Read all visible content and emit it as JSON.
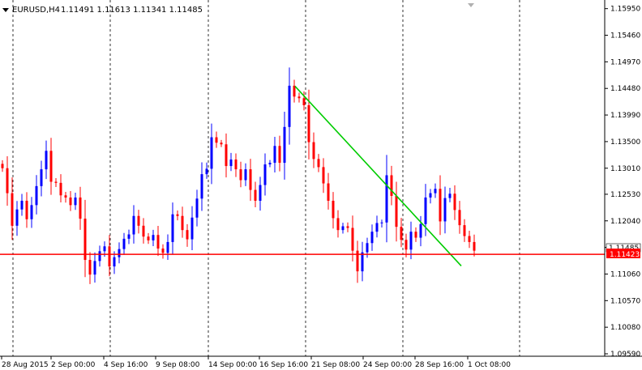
{
  "symbol_title": "EURUSD,H4",
  "ohlc_readout": "1.11491 1.11613 1.11341 1.11485",
  "colors": {
    "background": "#ffffff",
    "bull_candle": "#0000ff",
    "bear_candle": "#ff0000",
    "trendline": "#00cc00",
    "hline": "#ff0000",
    "price_badge": "#ff0000",
    "grid": "#000000",
    "axis": "#000000"
  },
  "icons": {
    "triangle": "triangle-down-icon"
  },
  "chart_data": {
    "type": "candlestick",
    "title": "EURUSD,H4",
    "ylim": [
      1.0959,
      1.1599
    ],
    "y_ticks": [
      "1.15950",
      "1.15460",
      "1.14970",
      "1.14480",
      "1.13990",
      "1.13500",
      "1.13010",
      "1.12530",
      "1.12040",
      "1.11550",
      "1.11060",
      "1.10570",
      "1.10080",
      "1.09590"
    ],
    "x_labels": [
      "28 Aug 2015",
      "2 Sep 00:00",
      "4 Sep 16:00",
      "9 Sep 08:00",
      "14 Sep 00:00",
      "16 Sep 16:00",
      "21 Sep 08:00",
      "24 Sep 00:00",
      "28 Sep 16:00",
      "1 Oct 08:00"
    ],
    "current_price": "1.11485",
    "hline_price": "1.11423",
    "trendline": {
      "start_price": 1.1452,
      "end_price": 1.1121
    },
    "grid": "vertical dashed",
    "closes": [
      1.1301,
      1.1255,
      1.1195,
      1.1225,
      1.1241,
      1.1207,
      1.1233,
      1.1268,
      1.1299,
      1.1333,
      1.1276,
      1.1274,
      1.1251,
      1.1247,
      1.1233,
      1.1247,
      1.1208,
      1.1132,
      1.1105,
      1.113,
      1.1148,
      1.1157,
      1.112,
      1.1137,
      1.1152,
      1.1171,
      1.1179,
      1.1213,
      1.1195,
      1.1175,
      1.1168,
      1.1178,
      1.1153,
      1.1145,
      1.1165,
      1.1216,
      1.1213,
      1.1187,
      1.117,
      1.121,
      1.1245,
      1.129,
      1.13,
      1.1358,
      1.1348,
      1.1345,
      1.1305,
      1.1317,
      1.1299,
      1.1279,
      1.1299,
      1.1261,
      1.1241,
      1.127,
      1.1308,
      1.1311,
      1.1342,
      1.1311,
      1.1377,
      1.1453,
      1.1433,
      1.143,
      1.1417,
      1.1349,
      1.1318,
      1.1303,
      1.1273,
      1.1241,
      1.1209,
      1.1187,
      1.1194,
      1.1191,
      1.1149,
      1.1111,
      1.1146,
      1.1163,
      1.1184,
      1.12,
      1.1201,
      1.1288,
      1.125,
      1.1193,
      1.1169,
      1.1151,
      1.1184,
      1.1173,
      1.1198,
      1.1247,
      1.1255,
      1.1263,
      1.1203,
      1.1246,
      1.1254,
      1.1224,
      1.1196,
      1.1176,
      1.1165,
      1.1149
    ]
  }
}
